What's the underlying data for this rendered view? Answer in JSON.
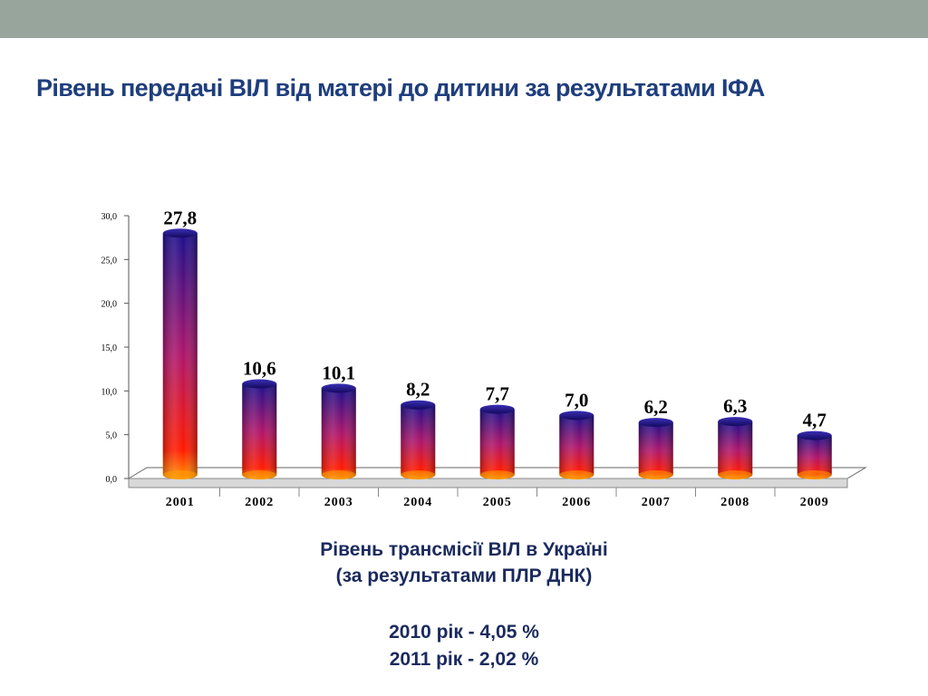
{
  "slide": {
    "title": "Рівень передачі ВІЛ від матері до дитини за результатами ІФА"
  },
  "chart_data": {
    "type": "bar",
    "categories": [
      "2001",
      "2002",
      "2003",
      "2004",
      "2005",
      "2006",
      "2007",
      "2008",
      "2009"
    ],
    "values": [
      27.8,
      10.6,
      10.1,
      8.2,
      7.7,
      7.0,
      6.2,
      6.3,
      4.7
    ],
    "value_labels": [
      "27,8",
      "10,6",
      "10,1",
      "8,2",
      "7,7",
      "7,0",
      "6,2",
      "6,3",
      "4,7"
    ],
    "y_ticks": [
      "0,0",
      "5,0",
      "10,0",
      "15,0",
      "20,0",
      "25,0",
      "30,0"
    ],
    "ylim": [
      0,
      30
    ],
    "title": "",
    "xlabel": "",
    "ylabel": "",
    "grid": false,
    "legend": "none",
    "colors": {
      "bar_top": "#1c0f8c",
      "bar_mid": "#b0166a",
      "bar_bottom": "#ff1a00",
      "bar_base": "#ff9a00"
    }
  },
  "caption": {
    "line1": "Рівень трансмісії ВІЛ в Україні",
    "line2": "(за результатами ПЛР ДНК)",
    "line3": "2010 рік - 4,05 %",
    "line4": "2011 рік - 2,02 %"
  }
}
